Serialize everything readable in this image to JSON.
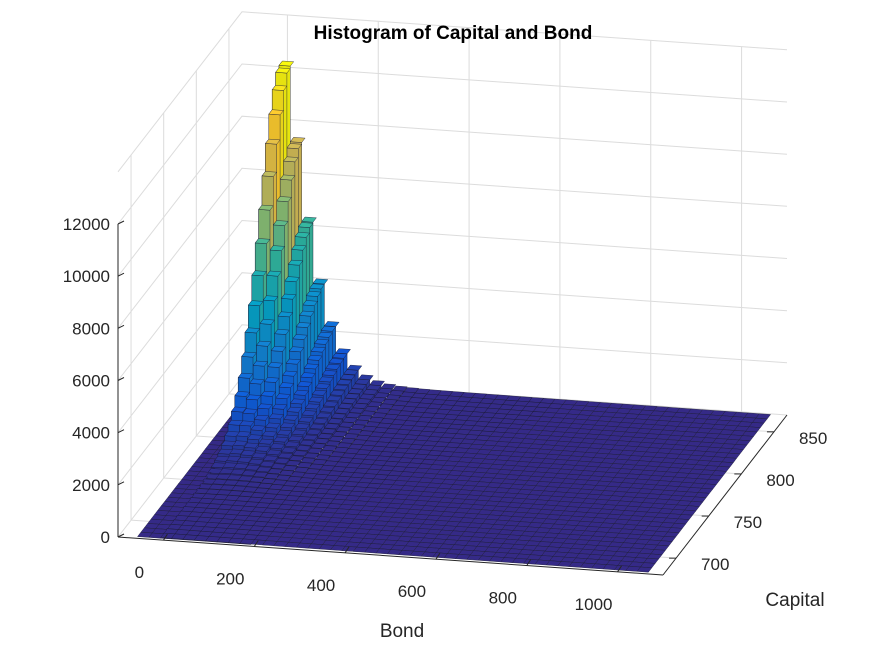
{
  "chart_data": {
    "type": "bar3d-histogram",
    "title": "Histogram of Capital and Bond",
    "xlabel": "Bond",
    "ylabel": "Capital",
    "zlabel": "",
    "xticks": [
      "0",
      "200",
      "400",
      "600",
      "800",
      "1000"
    ],
    "yticks": [
      "700",
      "750",
      "800",
      "850"
    ],
    "zticks": [
      "0",
      "2000",
      "4000",
      "6000",
      "8000",
      "10000",
      "12000"
    ],
    "xlim": [
      -100,
      1100
    ],
    "ylim": [
      680,
      870
    ],
    "zlim": [
      0,
      14000
    ],
    "grid": true,
    "colormap": "parula",
    "colormap_stops": [
      "#352a87",
      "#0f5cdd",
      "#1481d6",
      "#06a4ca",
      "#2eb7a4",
      "#87bf77",
      "#d1bb59",
      "#fec832",
      "#f9fb0e"
    ],
    "peak": {
      "bond": 0,
      "capital": 865,
      "count": 12300
    },
    "bins": {
      "bond_start": -60,
      "bond_width": 25,
      "bond_count": 45,
      "capital_start": 682,
      "capital_width": 5.2,
      "capital_count": 36
    }
  }
}
